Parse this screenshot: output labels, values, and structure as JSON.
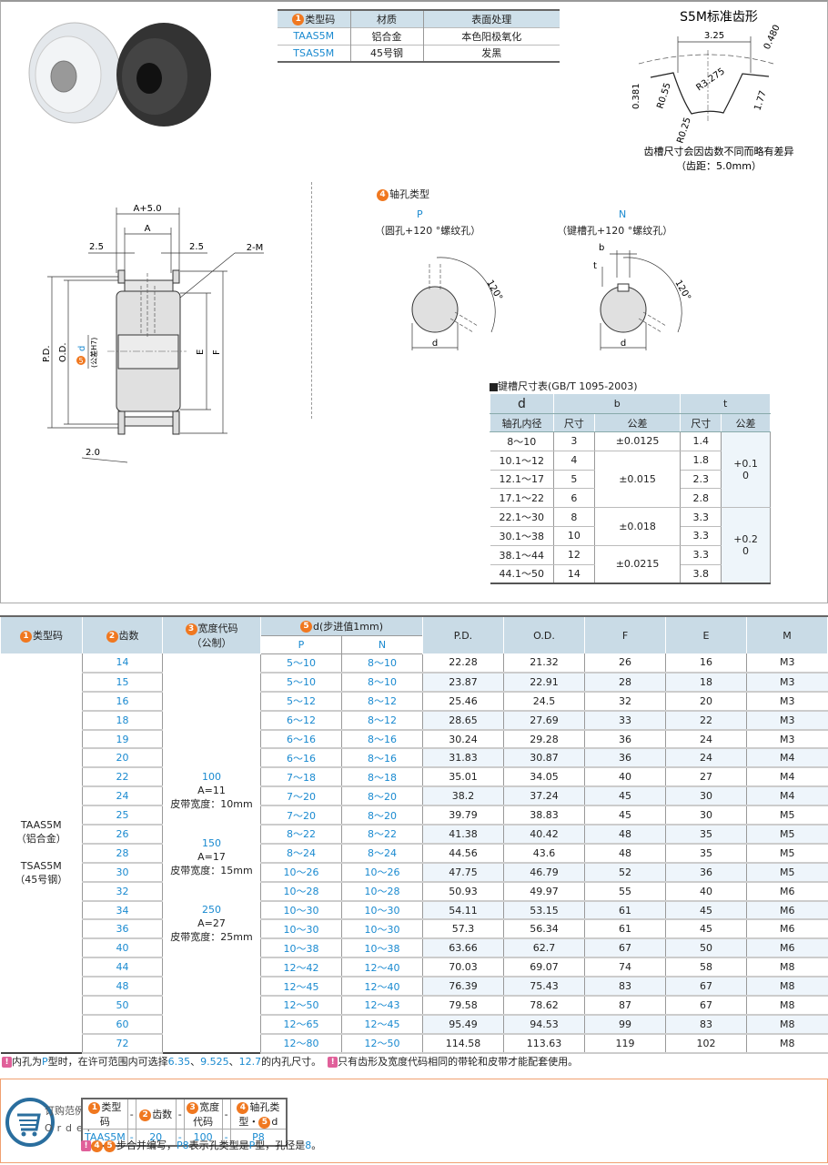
{
  "spec_table": {
    "headers": [
      "类型码",
      "材质",
      "表面处理"
    ],
    "header_num": "1",
    "rows": [
      [
        "TAAS5M",
        "铝合金",
        "本色阳极氧化"
      ],
      [
        "TSAS5M",
        "45号钢",
        "发黑"
      ]
    ]
  },
  "tooth_profile": {
    "title": "S5M标准齿形",
    "dims": [
      "3.25",
      "0.480",
      "0.381",
      "R0.55",
      "R3.275",
      "1.77",
      "R0.25"
    ],
    "note": "齿槽尺寸会因齿数不同而略有差异",
    "pitch": "（齿距：5.0mm）"
  },
  "drawing": {
    "labels": {
      "a5": "A+5.0",
      "a": "A",
      "l25": "2.5",
      "r25": "2.5",
      "m": "2-M",
      "pd": "P.D.",
      "od": "O.D.",
      "d": "d",
      "d_num": "5",
      "tol": "(公差H7)",
      "e": "E",
      "f": "F",
      "t20": "2.0"
    }
  },
  "shaft_hole": {
    "title": "轴孔类型",
    "title_num": "4",
    "p": {
      "code": "P",
      "desc": "（圆孔+120 °螺纹孔）",
      "angle": "120°",
      "d": "d"
    },
    "n": {
      "code": "N",
      "desc": "（键槽孔+120 °螺纹孔）",
      "angle": "120°",
      "d": "d",
      "b": "b",
      "t": "t"
    }
  },
  "key_table": {
    "title": "键槽尺寸表(GB/T 1095-2003)",
    "h_d": "d",
    "h_d2": "轴孔内径",
    "h_b": "b",
    "h_t": "t",
    "h_size": "尺寸",
    "h_tol": "公差",
    "rows": [
      [
        "8～10",
        "3",
        "±0.0125",
        "1.4"
      ],
      [
        "10.1～12",
        "4",
        "±0.015",
        "1.8"
      ],
      [
        "12.1～17",
        "5",
        "",
        "2.3"
      ],
      [
        "17.1～22",
        "6",
        "",
        "2.8"
      ],
      [
        "22.1～30",
        "8",
        "±0.018",
        "3.3"
      ],
      [
        "30.1～38",
        "10",
        "",
        "3.3"
      ],
      [
        "38.1～44",
        "12",
        "±0.0215",
        "3.3"
      ],
      [
        "44.1～50",
        "14",
        "",
        "3.8"
      ]
    ],
    "t_tol": [
      "+0.1\n0",
      "+0.2\n0"
    ]
  },
  "main_table": {
    "headers": {
      "type": "类型码",
      "teeth": "齿数",
      "width": "宽度代码",
      "width2": "（公制）",
      "d": "d(步进值1mm)",
      "p": "P",
      "n": "N",
      "pd": "P.D.",
      "od": "O.D.",
      "f": "F",
      "e": "E",
      "m": "M"
    },
    "types": [
      "TAAS5M",
      "（铝合金）",
      "TSAS5M",
      "（45号钢）"
    ],
    "widths": [
      {
        "code": "100",
        "a": "A=11",
        "belt": "皮带宽度：10mm"
      },
      {
        "code": "150",
        "a": "A=17",
        "belt": "皮带宽度：15mm"
      },
      {
        "code": "250",
        "a": "A=27",
        "belt": "皮带宽度：25mm"
      }
    ],
    "rows": [
      [
        "14",
        "5～10",
        "8～10",
        "22.28",
        "21.32",
        "26",
        "16",
        "M3"
      ],
      [
        "15",
        "5～10",
        "8～10",
        "23.87",
        "22.91",
        "28",
        "18",
        "M3"
      ],
      [
        "16",
        "5～12",
        "8～12",
        "25.46",
        "24.5",
        "32",
        "20",
        "M3"
      ],
      [
        "18",
        "6～12",
        "8～12",
        "28.65",
        "27.69",
        "33",
        "22",
        "M3"
      ],
      [
        "19",
        "6～16",
        "8～16",
        "30.24",
        "29.28",
        "36",
        "24",
        "M3"
      ],
      [
        "20",
        "6～16",
        "8～16",
        "31.83",
        "30.87",
        "36",
        "24",
        "M4"
      ],
      [
        "22",
        "7～18",
        "8～18",
        "35.01",
        "34.05",
        "40",
        "27",
        "M4"
      ],
      [
        "24",
        "7～20",
        "8～20",
        "38.2",
        "37.24",
        "45",
        "30",
        "M4"
      ],
      [
        "25",
        "7～20",
        "8～20",
        "39.79",
        "38.83",
        "45",
        "30",
        "M5"
      ],
      [
        "26",
        "8～22",
        "8～22",
        "41.38",
        "40.42",
        "48",
        "35",
        "M5"
      ],
      [
        "28",
        "8～24",
        "8～24",
        "44.56",
        "43.6",
        "48",
        "35",
        "M5"
      ],
      [
        "30",
        "10～26",
        "10～26",
        "47.75",
        "46.79",
        "52",
        "36",
        "M5"
      ],
      [
        "32",
        "10～28",
        "10～28",
        "50.93",
        "49.97",
        "55",
        "40",
        "M6"
      ],
      [
        "34",
        "10～30",
        "10～30",
        "54.11",
        "53.15",
        "61",
        "45",
        "M6"
      ],
      [
        "36",
        "10～30",
        "10～30",
        "57.3",
        "56.34",
        "61",
        "45",
        "M6"
      ],
      [
        "40",
        "10～38",
        "10～38",
        "63.66",
        "62.7",
        "67",
        "50",
        "M6"
      ],
      [
        "44",
        "12～42",
        "12～40",
        "70.03",
        "69.07",
        "74",
        "58",
        "M8"
      ],
      [
        "48",
        "12～45",
        "12～40",
        "76.39",
        "75.43",
        "83",
        "67",
        "M8"
      ],
      [
        "50",
        "12～50",
        "12～43",
        "79.58",
        "78.62",
        "87",
        "67",
        "M8"
      ],
      [
        "60",
        "12～65",
        "12～45",
        "95.49",
        "94.53",
        "99",
        "83",
        "M8"
      ],
      [
        "72",
        "12～80",
        "12～50",
        "114.58",
        "113.63",
        "119",
        "102",
        "M8"
      ]
    ]
  },
  "notes": {
    "n1a": "内孔为",
    "n1b": "P",
    "n1c": "型时，在许可范围内可选择",
    "n1d": "6.35",
    "n1e": "、",
    "n1f": "9.525",
    "n1g": "、",
    "n1h": "12.7",
    "n1i": "的内孔尺寸。",
    "n2": "只有齿形及宽度代码相同的带轮和皮带才能配套使用。"
  },
  "order": {
    "title": "订购范例",
    "title_en": "Order",
    "headers": [
      "类型码",
      "-",
      "齿数",
      "-",
      "宽度代码",
      "-",
      "轴孔类型・",
      "d"
    ],
    "values": [
      "TAAS5M",
      "-",
      "20",
      "-",
      "100",
      "-",
      "P8"
    ],
    "note_a": "步合并编写，",
    "note_b": "P8",
    "note_c": "表示孔类型是",
    "note_d": "P",
    "note_e": "型，孔径是",
    "note_f": "8",
    "note_g": "。"
  },
  "colors": {
    "accent_blue": "#1a8ad0",
    "header_bg": "#c9dbe6",
    "number_orange": "#f07820",
    "warn_pink": "#e0609a",
    "order_border": "#f0a070"
  }
}
